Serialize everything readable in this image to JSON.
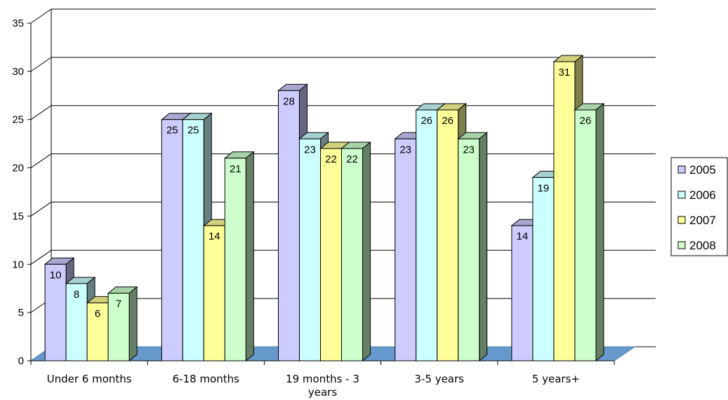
{
  "chart_data": {
    "type": "bar",
    "categories": [
      "Under 6 months",
      "6-18 months",
      "19 months - 3 years",
      "3-5 years",
      "5 years+"
    ],
    "series": [
      {
        "name": "2005",
        "values": [
          10,
          25,
          28,
          23,
          14
        ],
        "color": "#ccccff"
      },
      {
        "name": "2006",
        "values": [
          8,
          25,
          23,
          26,
          19
        ],
        "color": "#ccffff"
      },
      {
        "name": "2007",
        "values": [
          6,
          14,
          22,
          26,
          31
        ],
        "color": "#ffff99"
      },
      {
        "name": "2008",
        "values": [
          7,
          21,
          22,
          23,
          26
        ],
        "color": "#ccffcc"
      }
    ],
    "title": "",
    "xlabel": "",
    "ylabel": "",
    "ylim": [
      0,
      35
    ],
    "yticks": [
      0,
      5,
      10,
      15,
      20,
      25,
      30,
      35
    ],
    "grid": true,
    "legend_position": "right",
    "floor_color": "#6699cc"
  }
}
